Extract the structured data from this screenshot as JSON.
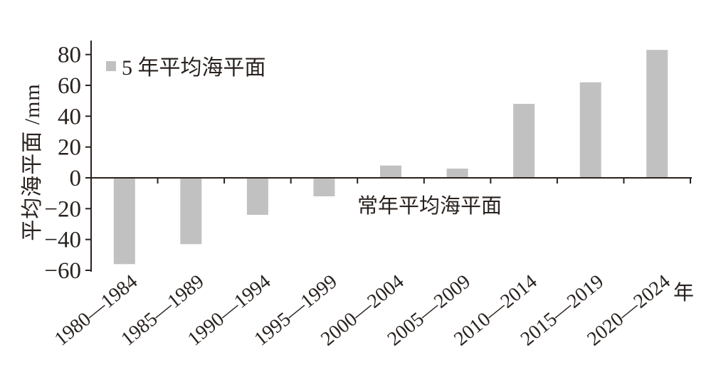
{
  "chart_data": {
    "type": "bar",
    "title": "",
    "categories": [
      "1980—1984",
      "1985—1989",
      "1990—1994",
      "1995—1999",
      "2000—2004",
      "2005—2009",
      "2010—2014",
      "2015—2019",
      "2020—2024"
    ],
    "values": [
      -56,
      -43,
      -24,
      -12,
      8,
      6,
      48,
      62,
      83
    ],
    "series_label": "5 年平均海平面",
    "annotation": "常年平均海平面",
    "ylabel": "平均海平面 /mm",
    "x_unit": "年",
    "yticks": [
      80,
      60,
      40,
      20,
      0,
      -20,
      -40,
      -60
    ],
    "ylim": [
      -62,
      90
    ],
    "grid": "off",
    "legend_position": "top-left-inside",
    "bar_color": "#c1c1c1",
    "legend_swatch_color": "#c0c0c0",
    "axis_color": "#29221f",
    "text_color": "#29221f"
  }
}
